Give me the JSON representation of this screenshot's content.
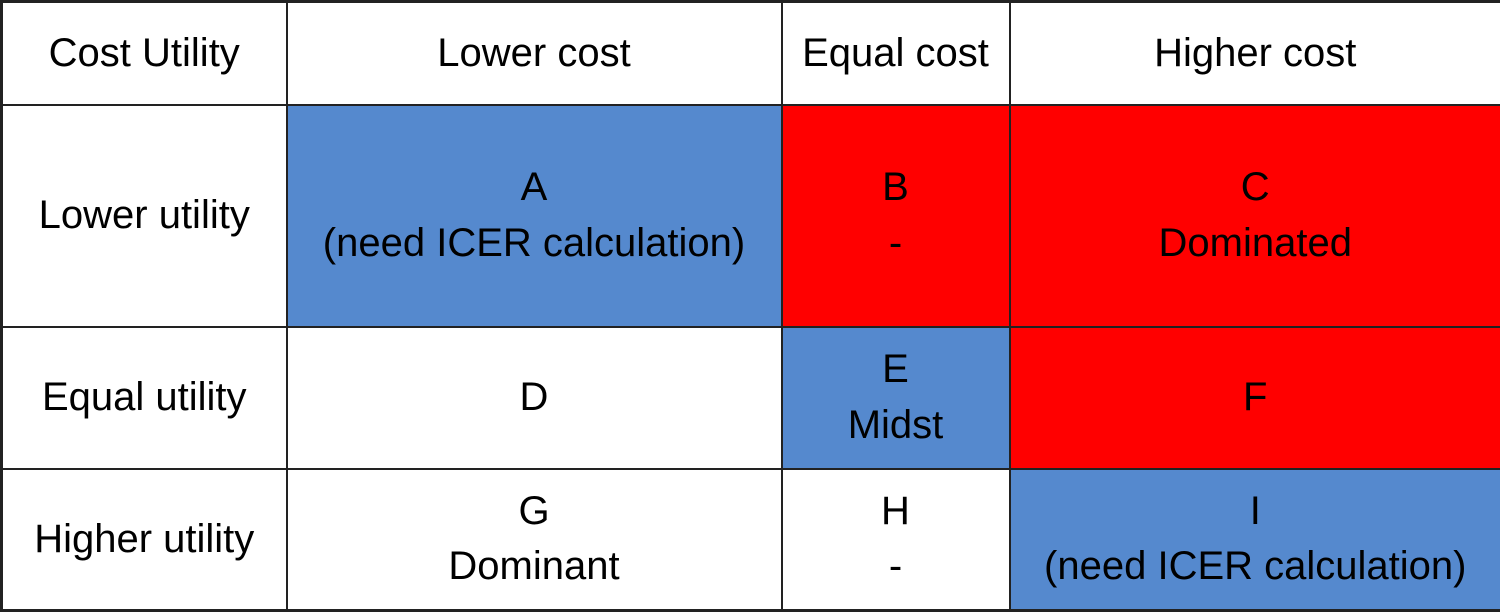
{
  "colors": {
    "cell_blue": "#5589CE",
    "cell_red": "#FF0000",
    "border": "#222222",
    "text": "#000000"
  },
  "table": {
    "corner_label": "Cost Utility",
    "column_headers": [
      "Lower cost",
      "Equal cost",
      "Higher cost"
    ],
    "rows": [
      {
        "label": "Lower utility",
        "cells": [
          {
            "letter": "A",
            "note": "(need ICER calculation)",
            "fill": "blue"
          },
          {
            "letter": "B",
            "note": "-",
            "fill": "red"
          },
          {
            "letter": "C",
            "note": "Dominated",
            "fill": "red"
          }
        ]
      },
      {
        "label": "Equal utility",
        "cells": [
          {
            "letter": "D",
            "note": "",
            "fill": "white"
          },
          {
            "letter": "E",
            "note": "Midst",
            "fill": "blue"
          },
          {
            "letter": "F",
            "note": "",
            "fill": "red"
          }
        ]
      },
      {
        "label": "Higher utility",
        "cells": [
          {
            "letter": "G",
            "note": "Dominant",
            "fill": "white"
          },
          {
            "letter": "H",
            "note": "-",
            "fill": "white"
          },
          {
            "letter": "I",
            "note": "(need ICER calculation)",
            "fill": "blue"
          }
        ]
      }
    ]
  },
  "chart_data": {
    "type": "table",
    "title": "Cost Utility",
    "columns": [
      "Cost Utility",
      "Lower cost",
      "Equal cost",
      "Higher cost"
    ],
    "rows": [
      [
        "Lower utility",
        "A (need ICER calculation)",
        "B -",
        "C Dominated"
      ],
      [
        "Equal utility",
        "D",
        "E Midst",
        "F"
      ],
      [
        "Higher utility",
        "G Dominant",
        "H -",
        "I (need ICER calculation)"
      ]
    ]
  }
}
